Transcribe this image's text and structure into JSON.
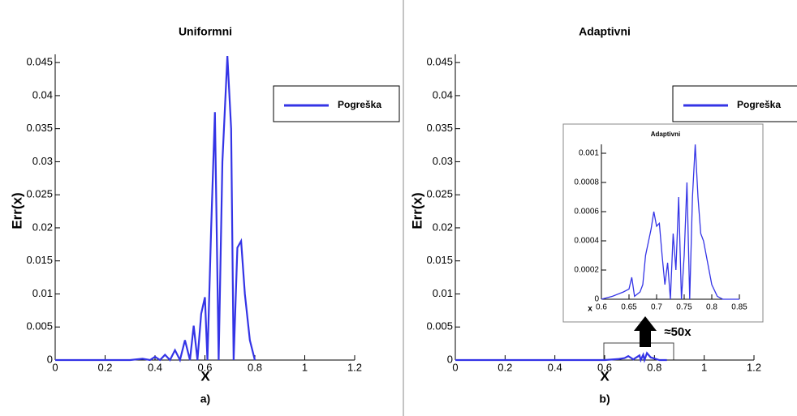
{
  "chart_data": [
    {
      "type": "line",
      "title": "Uniformni",
      "xlabel": "X",
      "ylabel": "Err(x)",
      "annotation": "a)",
      "xlim": [
        0,
        1.2
      ],
      "xticks": [
        0,
        0.2,
        0.4,
        0.6,
        0.8,
        1,
        1.2
      ],
      "ylim": [
        0,
        0.046
      ],
      "yticks": [
        0,
        0.005,
        0.01,
        0.015,
        0.02,
        0.025,
        0.03,
        0.035,
        0.04,
        0.045
      ],
      "series": [
        {
          "name": "Pogreška",
          "color": "#3434e6",
          "x": [
            0,
            0.3,
            0.35,
            0.38,
            0.4,
            0.42,
            0.44,
            0.46,
            0.48,
            0.5,
            0.52,
            0.54,
            0.555,
            0.57,
            0.585,
            0.6,
            0.61,
            0.625,
            0.64,
            0.655,
            0.67,
            0.69,
            0.705,
            0.715,
            0.73,
            0.745,
            0.76,
            0.78,
            0.8
          ],
          "values": [
            0,
            0,
            0.0002,
            0,
            0.0005,
            0,
            0.0008,
            0,
            0.0015,
            0,
            0.003,
            0,
            0.0052,
            0,
            0.007,
            0.0095,
            0,
            0.02,
            0.0375,
            0,
            0.03,
            0.046,
            0.035,
            0,
            0.017,
            0.018,
            0.01,
            0.003,
            0
          ]
        }
      ]
    },
    {
      "type": "line",
      "title": "Adaptivni",
      "xlabel": "X",
      "ylabel": "Err(x)",
      "annotation": "b)",
      "zoom_label": "≈50x",
      "xlim": [
        0,
        1.2
      ],
      "xticks": [
        0,
        0.2,
        0.4,
        0.6,
        0.8,
        1,
        1.2
      ],
      "ylim": [
        0,
        0.046
      ],
      "yticks": [
        0,
        0.005,
        0.01,
        0.015,
        0.02,
        0.025,
        0.03,
        0.035,
        0.04,
        0.045
      ],
      "series": [
        {
          "name": "Pogreška",
          "color": "#3434e6",
          "x": [
            0,
            0.6,
            0.655,
            0.68,
            0.695,
            0.715,
            0.74,
            0.745,
            0.755,
            0.76,
            0.77,
            0.785,
            0.82,
            0.85
          ],
          "values": [
            0,
            0,
            0.00015,
            0.0003,
            0.0006,
            0.0001,
            0.0007,
            0,
            0.0008,
            0,
            0.00106,
            0.0004,
            0,
            0
          ]
        }
      ]
    },
    {
      "type": "line",
      "title": "Adaptivni",
      "xlabel": "x",
      "xlim": [
        0.6,
        0.85
      ],
      "xticks": [
        0.6,
        0.65,
        0.7,
        0.75,
        0.8,
        0.85
      ],
      "ylim": [
        0,
        0.00105
      ],
      "yticks": [
        0,
        0.0002,
        0.0004,
        0.0006,
        0.0008,
        0.001
      ],
      "series": [
        {
          "name": "Pogreška",
          "color": "#3434e6",
          "x": [
            0.6,
            0.62,
            0.64,
            0.65,
            0.655,
            0.66,
            0.67,
            0.675,
            0.68,
            0.69,
            0.695,
            0.7,
            0.705,
            0.71,
            0.715,
            0.72,
            0.725,
            0.73,
            0.735,
            0.74,
            0.745,
            0.75,
            0.755,
            0.76,
            0.765,
            0.77,
            0.775,
            0.78,
            0.785,
            0.79,
            0.8,
            0.81,
            0.82,
            0.85
          ],
          "values": [
            0,
            2e-05,
            5e-05,
            7e-05,
            0.00015,
            2e-05,
            5e-05,
            0.0001,
            0.0003,
            0.00048,
            0.0006,
            0.0005,
            0.00052,
            0.0003,
            0.0001,
            0.00025,
            0,
            0.00045,
            0.0002,
            0.0007,
            0,
            0.0003,
            0.0008,
            0,
            0.0007,
            0.00106,
            0.0007,
            0.00045,
            0.0004,
            0.0003,
            0.0001,
            2e-05,
            0,
            0
          ]
        }
      ]
    }
  ]
}
